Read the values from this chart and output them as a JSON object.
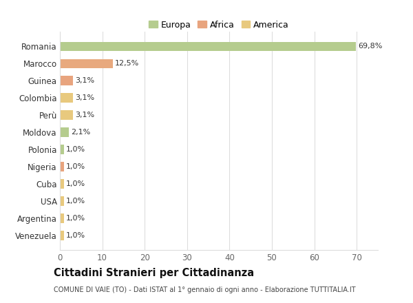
{
  "countries": [
    "Romania",
    "Marocco",
    "Guinea",
    "Colombia",
    "Perù",
    "Moldova",
    "Polonia",
    "Nigeria",
    "Cuba",
    "USA",
    "Argentina",
    "Venezuela"
  ],
  "values": [
    69.8,
    12.5,
    3.1,
    3.1,
    3.1,
    2.1,
    1.0,
    1.0,
    1.0,
    1.0,
    1.0,
    1.0
  ],
  "labels": [
    "69,8%",
    "12,5%",
    "3,1%",
    "3,1%",
    "3,1%",
    "2,1%",
    "1,0%",
    "1,0%",
    "1,0%",
    "1,0%",
    "1,0%",
    "1,0%"
  ],
  "colors": [
    "#b5cc8e",
    "#e8a97e",
    "#e8a47e",
    "#e8c97e",
    "#e8c97e",
    "#b5cc8e",
    "#b5cc8e",
    "#e8a47e",
    "#e8c97e",
    "#e8c97e",
    "#e8c97e",
    "#e8c97e"
  ],
  "legend_labels": [
    "Europa",
    "Africa",
    "America"
  ],
  "legend_colors": [
    "#b5cc8e",
    "#e8a47e",
    "#e8c97e"
  ],
  "title_main": "Cittadini Stranieri per Cittadinanza",
  "title_sub": "COMUNE DI VAIE (TO) - Dati ISTAT al 1° gennaio di ogni anno - Elaborazione TUTTITALIA.IT",
  "xlim": [
    0,
    75
  ],
  "xticks": [
    0,
    10,
    20,
    30,
    40,
    50,
    60,
    70
  ],
  "bg_color": "#ffffff",
  "grid_color": "#dddddd",
  "bar_height": 0.55
}
